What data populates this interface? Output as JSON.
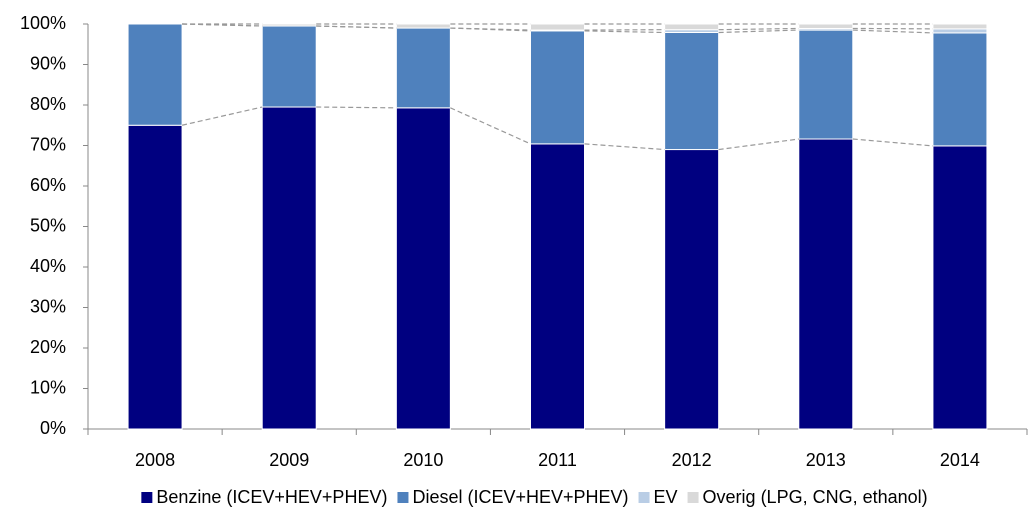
{
  "chart_data": {
    "type": "stacked_bar",
    "categories": [
      "2008",
      "2009",
      "2010",
      "2011",
      "2012",
      "2013",
      "2014"
    ],
    "series": [
      {
        "name": "Benzine (ICEV+HEV+PHEV)",
        "color": "#000080",
        "values": [
          75,
          79.5,
          79.3,
          70.4,
          69,
          71.6,
          69.9
        ]
      },
      {
        "name": "Diesel (ICEV+HEV+PHEV)",
        "color": "#4f81bd",
        "values": [
          25,
          20,
          19.7,
          27.9,
          28.9,
          26.9,
          27.9
        ]
      },
      {
        "name": "EV",
        "color": "#b9cde5",
        "values": [
          0,
          0,
          0,
          0.2,
          0.7,
          0.4,
          1
        ]
      },
      {
        "name": "Overig (LPG, CNG, ethanol)",
        "color": "#d9d9d9",
        "values": [
          0,
          0.5,
          1,
          1.5,
          1.4,
          1.1,
          1.2
        ]
      }
    ],
    "ylim": [
      0,
      100
    ],
    "yticks": [
      {
        "value": 0,
        "label": "0%"
      },
      {
        "value": 10,
        "label": "10%"
      },
      {
        "value": 20,
        "label": "20%"
      },
      {
        "value": 30,
        "label": "30%"
      },
      {
        "value": 40,
        "label": "40%"
      },
      {
        "value": 50,
        "label": "50%"
      },
      {
        "value": 60,
        "label": "60%"
      },
      {
        "value": 70,
        "label": "70%"
      },
      {
        "value": 80,
        "label": "80%"
      },
      {
        "value": 90,
        "label": "90%"
      },
      {
        "value": 100,
        "label": "100%"
      }
    ],
    "legend": "bottom"
  }
}
